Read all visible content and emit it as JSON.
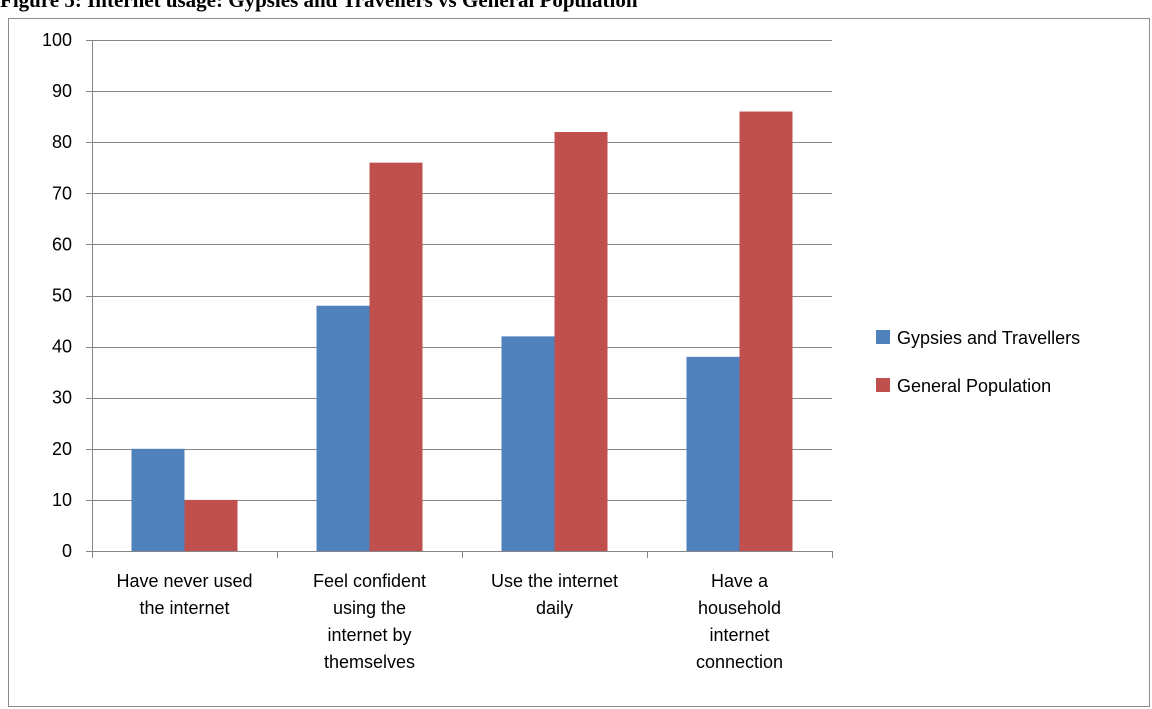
{
  "page": {
    "title": "Figure 5: Internet usage: Gypsies and Travellers vs General Population"
  },
  "chart_data": {
    "type": "bar",
    "title": "",
    "xlabel": "",
    "ylabel": "",
    "ylim": [
      0,
      100
    ],
    "yticks": [
      0,
      10,
      20,
      30,
      40,
      50,
      60,
      70,
      80,
      90,
      100
    ],
    "grid": true,
    "legend_position": "right",
    "categories": [
      [
        "Have never used",
        "the internet"
      ],
      [
        "Feel confident",
        "using the",
        "internet by",
        "themselves"
      ],
      [
        "Use the internet",
        "daily"
      ],
      [
        "Have a",
        "household",
        "internet",
        "connection"
      ]
    ],
    "series": [
      {
        "name": "Gypsies and Travellers",
        "color": "#4f81bd",
        "values": [
          20,
          48,
          42,
          38
        ]
      },
      {
        "name": "General Population",
        "color": "#c0504d",
        "values": [
          10,
          76,
          82,
          86
        ]
      }
    ]
  }
}
